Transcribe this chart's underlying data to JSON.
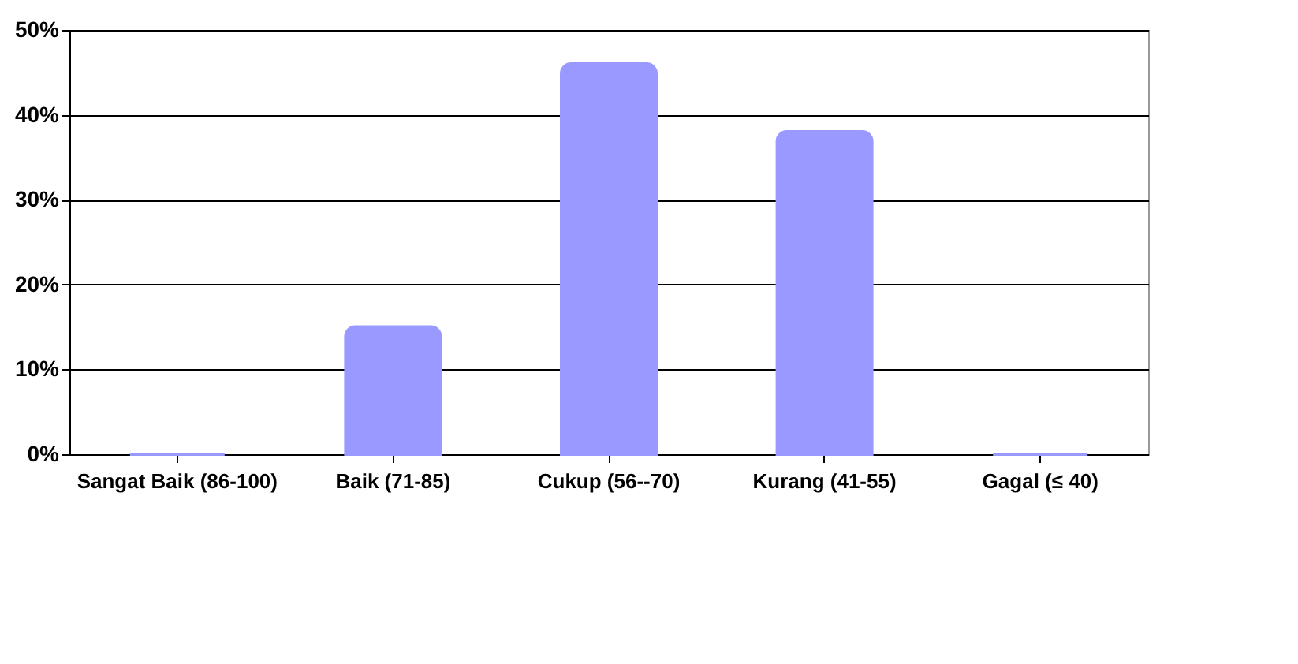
{
  "chart_data": {
    "type": "bar",
    "categories": [
      "Sangat Baik (86-100)",
      "Baik (71-85)",
      "Cukup (56--70)",
      "Kurang (41-55)",
      "Gagal (≤  40)"
    ],
    "values": [
      0,
      15,
      46,
      38,
      0
    ],
    "color": "#9999ff",
    "ylim": [
      0,
      50
    ],
    "yticks": [
      {
        "value": 0,
        "label": "0%"
      },
      {
        "value": 10,
        "label": "10%"
      },
      {
        "value": 20,
        "label": "20%"
      },
      {
        "value": 30,
        "label": "30%"
      },
      {
        "value": 40,
        "label": "40%"
      },
      {
        "value": 50,
        "label": "50%"
      }
    ],
    "grid": "y"
  }
}
